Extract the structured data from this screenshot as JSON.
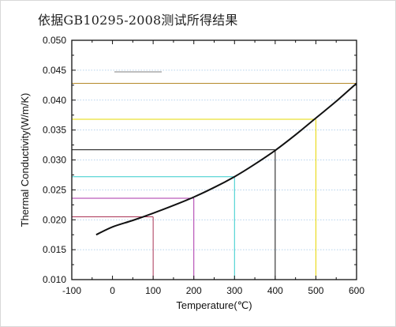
{
  "caption": "依据GB10295-2008测试所得结果",
  "chart_data": {
    "type": "line",
    "title": "",
    "xlabel": "Temperature(℃)",
    "ylabel": "Thermal Conductivity(W/m/K)",
    "xlim": [
      -100,
      600
    ],
    "ylim": [
      0.01,
      0.05
    ],
    "xticks": [
      -100,
      0,
      100,
      200,
      300,
      400,
      500,
      600
    ],
    "xtick_labels": [
      "-100",
      "0",
      "100",
      "200",
      "300",
      "400",
      "500",
      "600"
    ],
    "yticks": [
      0.01,
      0.015,
      0.02,
      0.025,
      0.03,
      0.035,
      0.04,
      0.045,
      0.05
    ],
    "ytick_labels": [
      "0.010",
      "0.015",
      "0.020",
      "0.025",
      "0.030",
      "0.035",
      "0.040",
      "0.045",
      "0.050"
    ],
    "grid": "dotted horizontal",
    "legend": "top-left",
    "legend_entries": [
      {
        "color": "#aaaaaa",
        "label": ""
      }
    ],
    "series": [
      {
        "color": "#111111",
        "x": [
          -40,
          0,
          50,
          100,
          150,
          200,
          250,
          300,
          350,
          400,
          450,
          500,
          550,
          600
        ],
        "y": [
          0.0175,
          0.0188,
          0.0199,
          0.0211,
          0.0224,
          0.0238,
          0.0254,
          0.0272,
          0.0293,
          0.0316,
          0.0342,
          0.037,
          0.0398,
          0.0428
        ]
      }
    ],
    "reference_lines": [
      {
        "x": 100,
        "y": 0.0205,
        "color": "#aa3355"
      },
      {
        "x": 200,
        "y": 0.0236,
        "color": "#aa33aa"
      },
      {
        "x": 300,
        "y": 0.0272,
        "color": "#33cccc"
      },
      {
        "x": 400,
        "y": 0.0317,
        "color": "#111111"
      },
      {
        "x": 500,
        "y": 0.0368,
        "color": "#e6d800"
      },
      {
        "x": 600,
        "y": 0.0428,
        "color": "#b58a2a"
      }
    ]
  }
}
